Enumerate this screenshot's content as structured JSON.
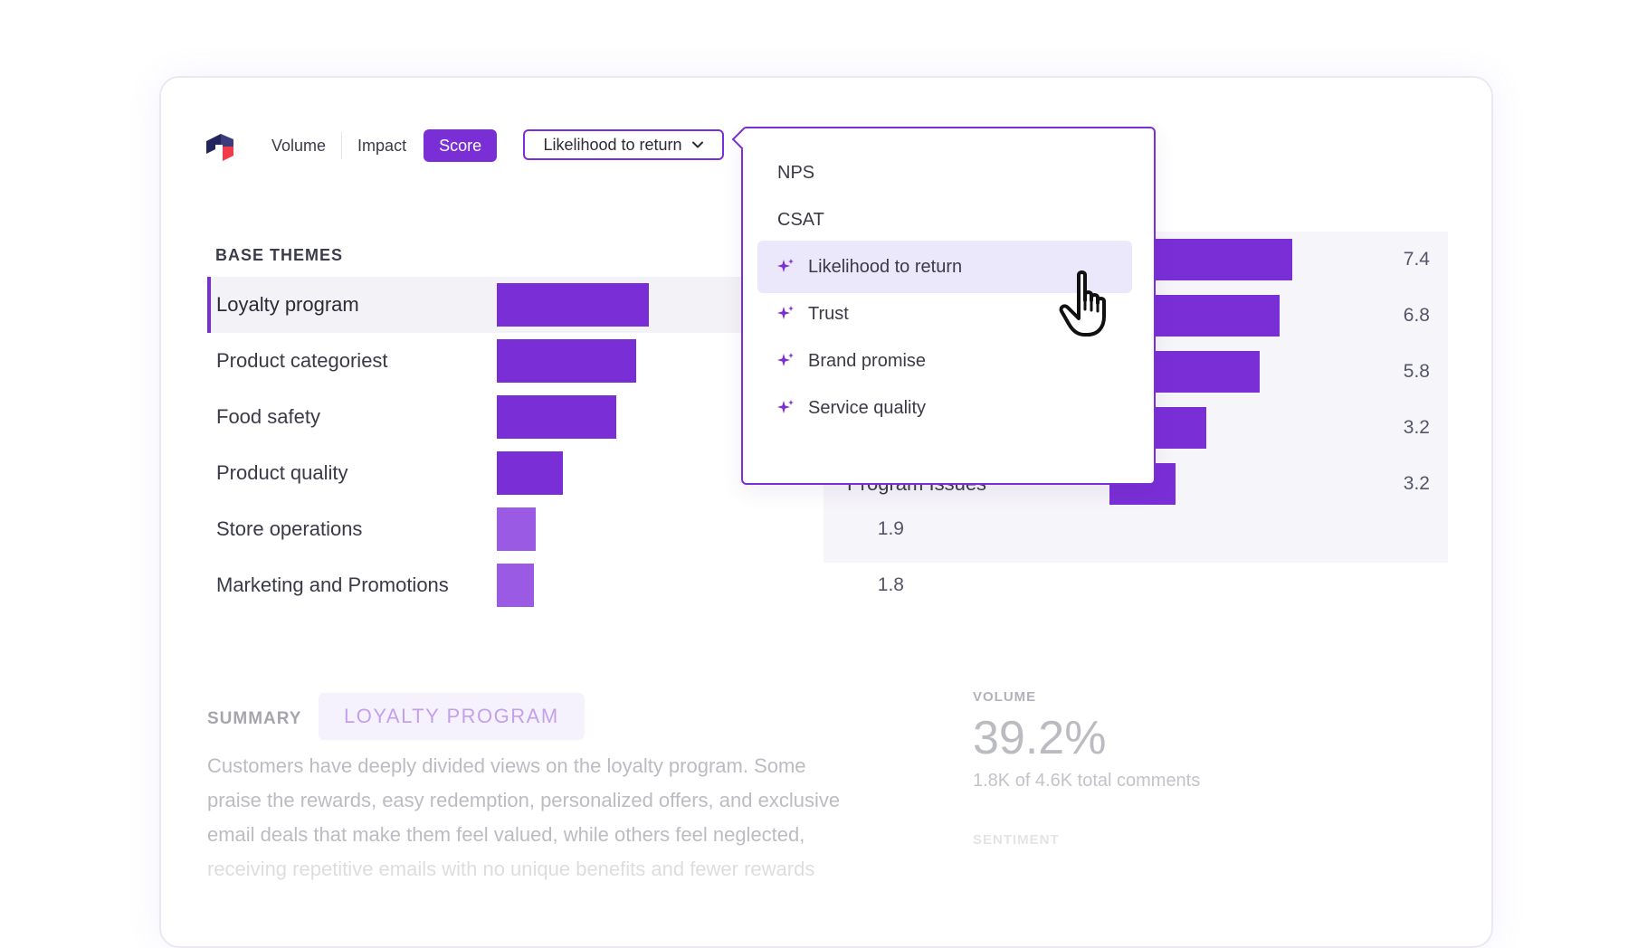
{
  "tabs": [
    {
      "label": "Volume",
      "active": false
    },
    {
      "label": "Impact",
      "active": false
    },
    {
      "label": "Score",
      "active": true
    }
  ],
  "metric_select": {
    "selected": "Likelihood to return",
    "icon": "chevron-down-icon"
  },
  "base_themes": {
    "title": "BASE THEMES",
    "rows": [
      {
        "name": "Loyalty program",
        "value": "",
        "score": 7.4,
        "selected": true
      },
      {
        "name": "Product categoriest",
        "value": "",
        "score": 6.8
      },
      {
        "name": "Food safety",
        "value": "",
        "score": 5.8
      },
      {
        "name": "Product quality",
        "value": "",
        "score": 3.2
      },
      {
        "name": "Store operations",
        "value": "1.9",
        "score": 1.9
      },
      {
        "name": "Marketing and Promotions",
        "value": "1.8",
        "score": 1.8
      }
    ]
  },
  "right_panel": {
    "rows": [
      {
        "name": "",
        "value": "7.4",
        "score": 7.4
      },
      {
        "name": "",
        "value": "6.8",
        "score": 6.8
      },
      {
        "name": "",
        "value": "5.8",
        "score": 5.8
      },
      {
        "name": "",
        "value": "3.2",
        "score": 3.2
      },
      {
        "name": "Program Issues",
        "value": "3.2",
        "score": 3.2
      }
    ]
  },
  "dropdown": {
    "items": [
      {
        "label": "NPS",
        "icon": null,
        "highlighted": false
      },
      {
        "label": "CSAT",
        "icon": null,
        "highlighted": false
      },
      {
        "label": "Likelihood to return",
        "icon": "sparkle-icon",
        "highlighted": true
      },
      {
        "label": "Trust",
        "icon": "sparkle-icon",
        "highlighted": false
      },
      {
        "label": "Brand promise",
        "icon": "sparkle-icon",
        "highlighted": false
      },
      {
        "label": "Service quality",
        "icon": "sparkle-icon",
        "highlighted": false
      }
    ]
  },
  "summary": {
    "label": "SUMMARY",
    "chip": "LOYALTY PROGRAM",
    "text_lines": [
      "Customers have deeply divided views on the loyalty program. Some",
      "praise the rewards, easy redemption, personalized offers, and exclusive",
      "email deals that make them feel valued, while others feel neglected,",
      "receiving repetitive emails with no unique benefits and fewer rewards"
    ]
  },
  "volume": {
    "label": "VOLUME",
    "value": "39.2%",
    "sub": "1.8K of 4.6K total comments"
  },
  "sentiment": {
    "label": "SENTIMENT"
  },
  "colors": {
    "accent": "#7a2fd6",
    "bar_light": "#9b5ae3",
    "highlight": "#ece8fb",
    "logo_navy": "#23245e",
    "logo_red": "#ef3b4a"
  }
}
